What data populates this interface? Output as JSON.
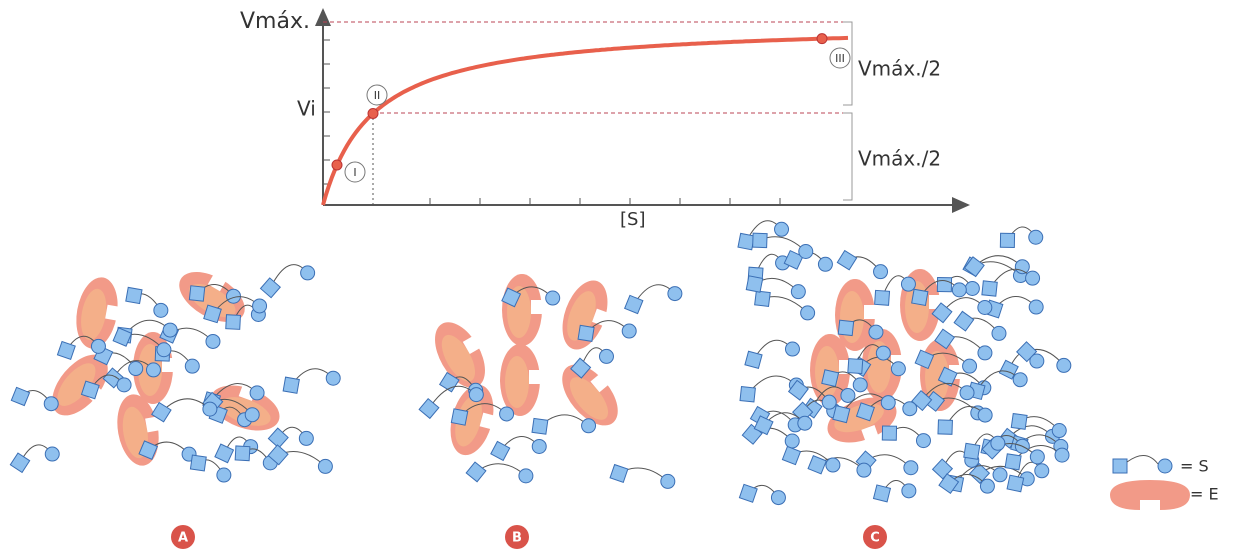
{
  "graph": {
    "y_top_label": "Vmáx.",
    "y_mid_label": "Vi",
    "x_label": "[S]",
    "points": [
      "I",
      "II",
      "III"
    ],
    "bracket_labels": [
      "Vmáx./2",
      "Vmáx./2"
    ]
  },
  "panels": [
    "A",
    "B",
    "C"
  ],
  "legend": {
    "substrate": "= S",
    "enzyme": "= E"
  }
}
